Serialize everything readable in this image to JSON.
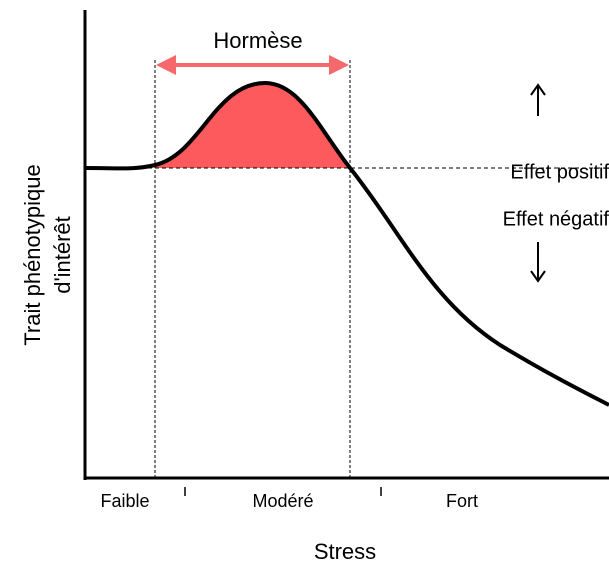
{
  "title": "Hormèse",
  "effects": {
    "positive": "Effet positif",
    "negative": "Effet négatif"
  },
  "x_axis": {
    "label": "Stress",
    "zones": [
      "Faible",
      "Modéré",
      "Fort"
    ]
  },
  "y_axis": {
    "label_lines": [
      "Trait phénotypique",
      "d'intérêt"
    ]
  }
}
